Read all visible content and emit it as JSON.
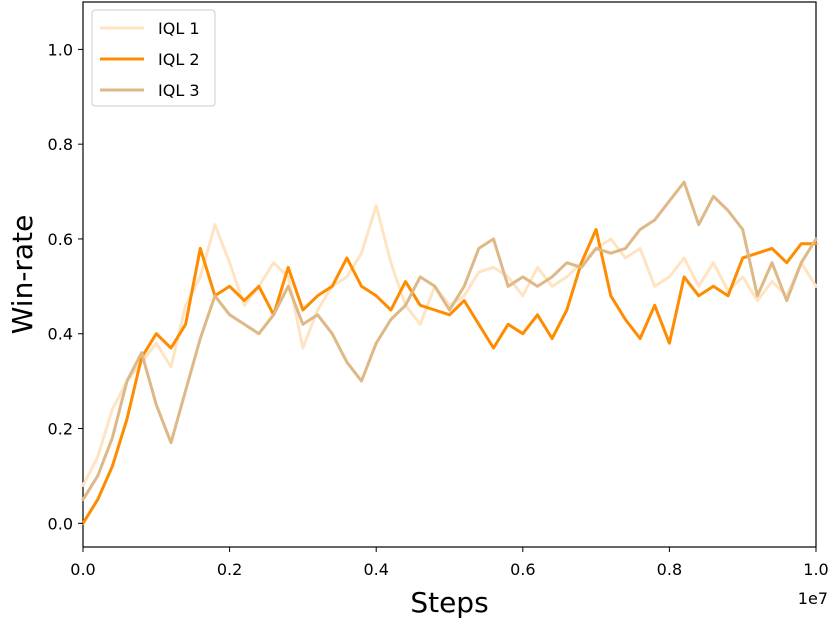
{
  "chart_data": {
    "type": "line",
    "xlabel": "Steps",
    "ylabel": "Win-rate",
    "x_offset_label": "1e7",
    "xlim": [
      0.0,
      1.0
    ],
    "ylim": [
      -0.05,
      1.1
    ],
    "xticks": [
      0.0,
      0.2,
      0.4,
      0.6,
      0.8,
      1.0
    ],
    "yticks": [
      0.0,
      0.2,
      0.4,
      0.6,
      0.8,
      1.0
    ],
    "xtick_labels": [
      "0.0",
      "0.2",
      "0.4",
      "0.6",
      "0.8",
      "1.0"
    ],
    "ytick_labels": [
      "0.0",
      "0.2",
      "0.4",
      "0.6",
      "0.8",
      "1.0"
    ],
    "grid": false,
    "legend_position": "top-left",
    "series": [
      {
        "name": "IQL 1",
        "color": "#ffe4c4",
        "x": [
          0.0,
          0.02,
          0.04,
          0.06,
          0.08,
          0.1,
          0.12,
          0.14,
          0.16,
          0.18,
          0.2,
          0.22,
          0.24,
          0.26,
          0.28,
          0.3,
          0.32,
          0.34,
          0.36,
          0.38,
          0.4,
          0.42,
          0.44,
          0.46,
          0.48,
          0.5,
          0.52,
          0.54,
          0.56,
          0.58,
          0.6,
          0.62,
          0.64,
          0.66,
          0.68,
          0.7,
          0.72,
          0.74,
          0.76,
          0.78,
          0.8,
          0.82,
          0.84,
          0.86,
          0.88,
          0.9,
          0.92,
          0.94,
          0.96,
          0.98,
          1.0
        ],
        "values": [
          0.08,
          0.14,
          0.24,
          0.3,
          0.34,
          0.38,
          0.33,
          0.46,
          0.52,
          0.63,
          0.55,
          0.46,
          0.5,
          0.55,
          0.52,
          0.37,
          0.45,
          0.5,
          0.52,
          0.57,
          0.67,
          0.55,
          0.46,
          0.42,
          0.5,
          0.46,
          0.48,
          0.53,
          0.54,
          0.52,
          0.48,
          0.54,
          0.5,
          0.52,
          0.55,
          0.58,
          0.6,
          0.56,
          0.58,
          0.5,
          0.52,
          0.56,
          0.5,
          0.55,
          0.49,
          0.52,
          0.47,
          0.51,
          0.48,
          0.55,
          0.5
        ]
      },
      {
        "name": "IQL 2",
        "color": "#ff8c00",
        "x": [
          0.0,
          0.02,
          0.04,
          0.06,
          0.08,
          0.1,
          0.12,
          0.14,
          0.16,
          0.18,
          0.2,
          0.22,
          0.24,
          0.26,
          0.28,
          0.3,
          0.32,
          0.34,
          0.36,
          0.38,
          0.4,
          0.42,
          0.44,
          0.46,
          0.48,
          0.5,
          0.52,
          0.54,
          0.56,
          0.58,
          0.6,
          0.62,
          0.64,
          0.66,
          0.68,
          0.7,
          0.72,
          0.74,
          0.76,
          0.78,
          0.8,
          0.82,
          0.84,
          0.86,
          0.88,
          0.9,
          0.92,
          0.94,
          0.96,
          0.98,
          1.0
        ],
        "values": [
          0.0,
          0.05,
          0.12,
          0.22,
          0.35,
          0.4,
          0.37,
          0.42,
          0.58,
          0.48,
          0.5,
          0.47,
          0.5,
          0.44,
          0.54,
          0.45,
          0.48,
          0.5,
          0.56,
          0.5,
          0.48,
          0.45,
          0.51,
          0.46,
          0.45,
          0.44,
          0.47,
          0.42,
          0.37,
          0.42,
          0.4,
          0.44,
          0.39,
          0.45,
          0.55,
          0.62,
          0.48,
          0.43,
          0.39,
          0.46,
          0.38,
          0.52,
          0.48,
          0.5,
          0.48,
          0.56,
          0.57,
          0.58,
          0.55,
          0.59,
          0.59
        ]
      },
      {
        "name": "IQL 3",
        "color": "#deb887",
        "x": [
          0.0,
          0.02,
          0.04,
          0.06,
          0.08,
          0.1,
          0.12,
          0.14,
          0.16,
          0.18,
          0.2,
          0.22,
          0.24,
          0.26,
          0.28,
          0.3,
          0.32,
          0.34,
          0.36,
          0.38,
          0.4,
          0.42,
          0.44,
          0.46,
          0.48,
          0.5,
          0.52,
          0.54,
          0.56,
          0.58,
          0.6,
          0.62,
          0.64,
          0.66,
          0.68,
          0.7,
          0.72,
          0.74,
          0.76,
          0.78,
          0.8,
          0.82,
          0.84,
          0.86,
          0.88,
          0.9,
          0.92,
          0.94,
          0.96,
          0.98,
          1.0
        ],
        "values": [
          0.05,
          0.1,
          0.18,
          0.3,
          0.36,
          0.25,
          0.17,
          0.28,
          0.39,
          0.48,
          0.44,
          0.42,
          0.4,
          0.44,
          0.5,
          0.42,
          0.44,
          0.4,
          0.34,
          0.3,
          0.38,
          0.43,
          0.46,
          0.52,
          0.5,
          0.45,
          0.5,
          0.58,
          0.6,
          0.5,
          0.52,
          0.5,
          0.52,
          0.55,
          0.54,
          0.58,
          0.57,
          0.58,
          0.62,
          0.64,
          0.68,
          0.72,
          0.63,
          0.69,
          0.66,
          0.62,
          0.48,
          0.55,
          0.47,
          0.55,
          0.6
        ]
      }
    ]
  }
}
